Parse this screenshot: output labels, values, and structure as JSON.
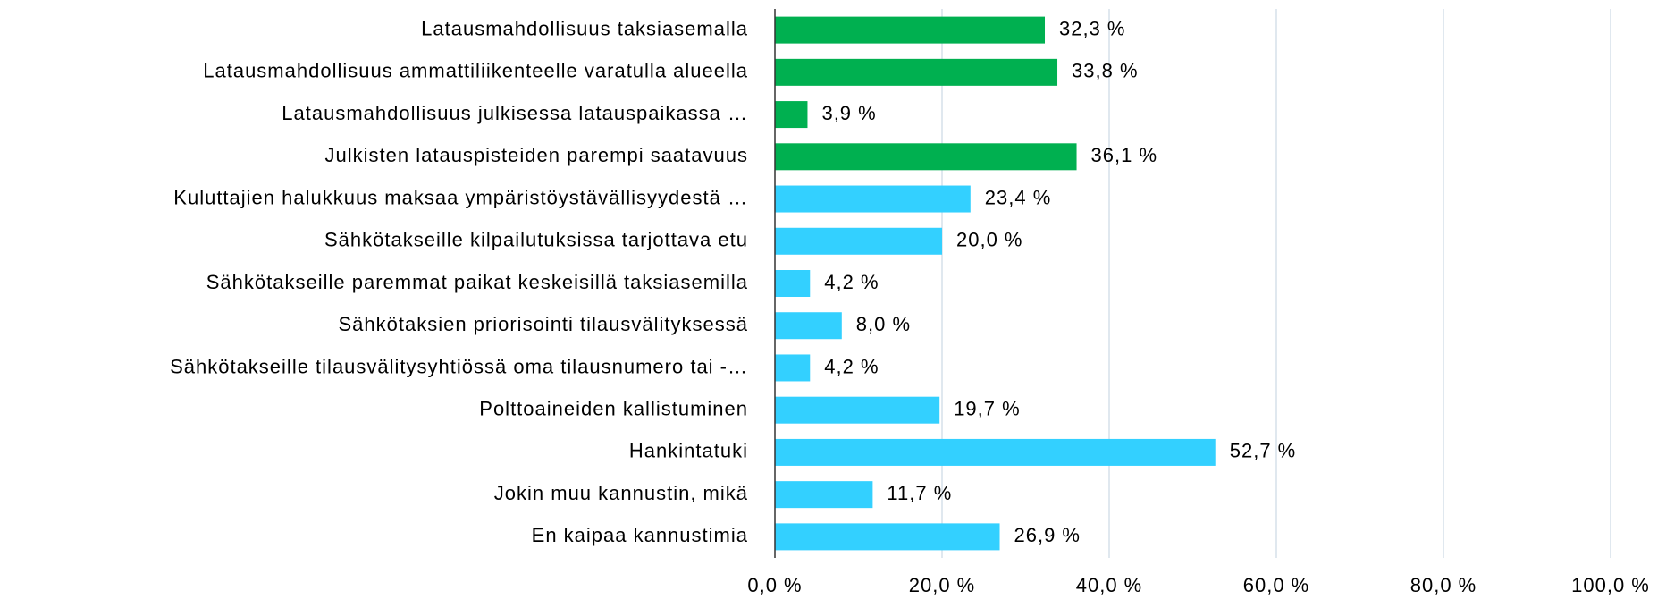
{
  "chart_data": {
    "type": "hbar",
    "categories": [
      "Latausmahdollisuus taksiasemalla",
      "Latausmahdollisuus ammattiliikenteelle varatulla alueella",
      "Latausmahdollisuus julkisessa latauspaikassa …",
      "Julkisten latauspisteiden parempi saatavuus",
      "Kuluttajien halukkuus maksaa ympäristöystävällisyydestä …",
      "Sähkötakseille kilpailutuksissa tarjottava etu",
      "Sähkötakseille paremmat paikat keskeisillä taksiasemilla",
      "Sähkötaksien priorisointi tilausvälityksessä",
      "Sähkötakseille tilausvälitysyhtiössä oma tilausnumero tai -…",
      "Polttoaineiden kallistuminen",
      "Hankintatuki",
      "Jokin muu kannustin, mikä",
      "En kaipaa kannustimia"
    ],
    "values": [
      32.3,
      33.8,
      3.9,
      36.1,
      23.4,
      20.0,
      4.2,
      8.0,
      4.2,
      19.7,
      52.7,
      11.7,
      26.9
    ],
    "value_labels": [
      "32,3 %",
      "33,8 %",
      "3,9 %",
      "36,1 %",
      "23,4 %",
      "20,0 %",
      "4,2 %",
      "8,0 %",
      "4,2 %",
      "19,7 %",
      "52,7 %",
      "11,7 %",
      "26,9 %"
    ],
    "colors": [
      "#00b050",
      "#00b050",
      "#00b050",
      "#00b050",
      "#33d0ff",
      "#33d0ff",
      "#33d0ff",
      "#33d0ff",
      "#33d0ff",
      "#33d0ff",
      "#33d0ff",
      "#33d0ff",
      "#33d0ff"
    ],
    "xlim": [
      0,
      100
    ],
    "xticks": [
      {
        "value": 0,
        "label": "0,0 %"
      },
      {
        "value": 20,
        "label": "20,0 %"
      },
      {
        "value": 40,
        "label": "40,0 %"
      },
      {
        "value": 60,
        "label": "60,0 %"
      },
      {
        "value": 80,
        "label": "80,0 %"
      },
      {
        "value": 100,
        "label": "100,0 %"
      }
    ],
    "grid": true
  }
}
